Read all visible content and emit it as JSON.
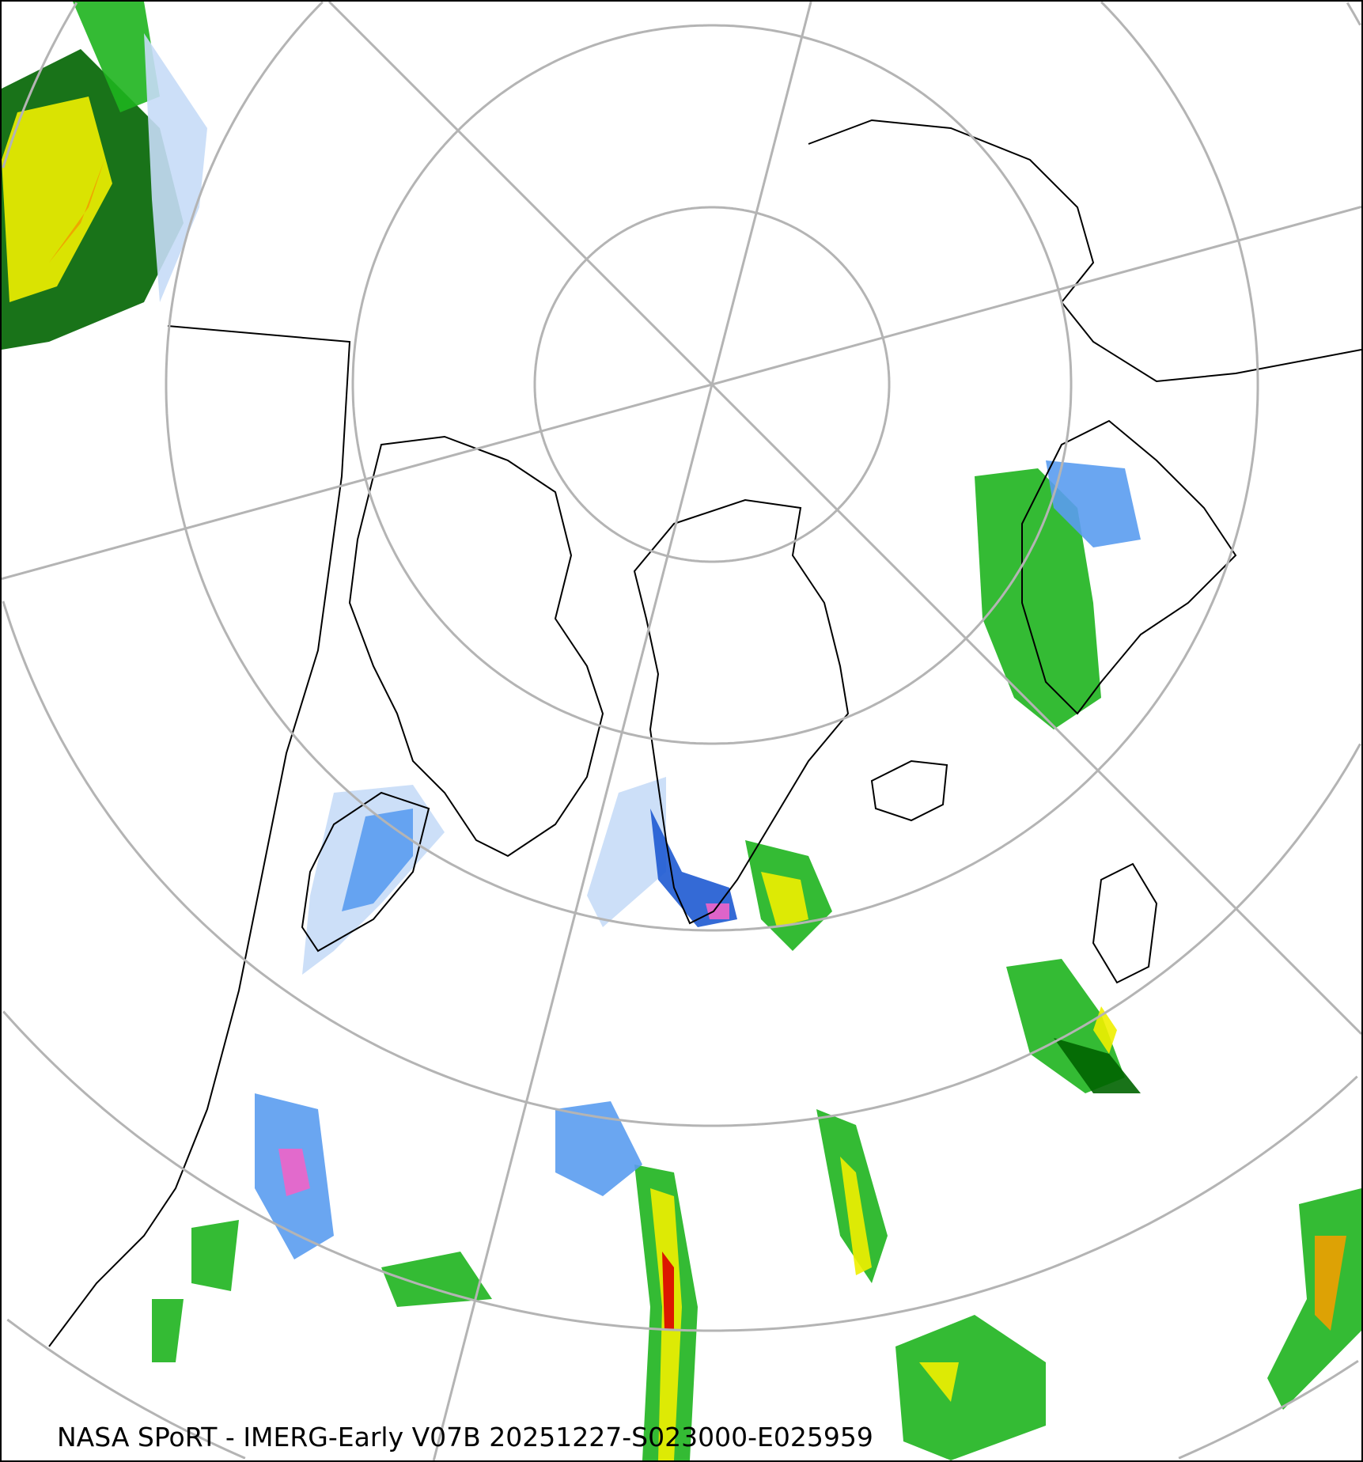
{
  "map": {
    "projection": "north-polar-stereographic",
    "product_caption": "NASA SPoRT - IMERG-Early V07B 20251227-S023000-E025959",
    "colors": {
      "graticule": "#b4b4b4",
      "coastline": "#000000",
      "precip_light_blue": "#c6dcf7",
      "precip_blue": "#5a9cf0",
      "precip_dark_blue": "#1e5ad2",
      "precip_pink": "#f064c8",
      "precip_dark_green": "#006400",
      "precip_green": "#1eb41e",
      "precip_light_green": "#8cf03c",
      "precip_yellow": "#f0f000",
      "precip_orange": "#f0a000",
      "precip_red": "#dc0000"
    }
  }
}
